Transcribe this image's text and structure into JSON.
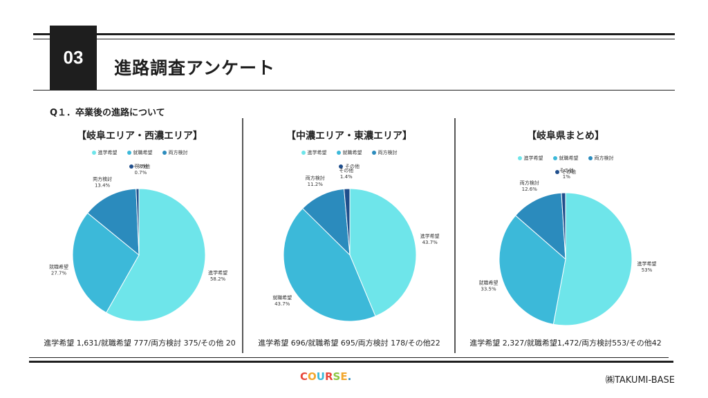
{
  "header": {
    "number": "03",
    "title": "進路調査アンケート"
  },
  "question": "Q１．卒業後の進路について",
  "colors": {
    "shingaku": "#6ee5ea",
    "shushoku": "#3cb9d9",
    "ryoho": "#2b8bbd",
    "sonota": "#1f4e8c"
  },
  "legend_labels": [
    "進学希望",
    "就職希望",
    "両方検討",
    "その他"
  ],
  "footer": {
    "logo": "COURSE.",
    "company": "㈱TAKUMI-BASE"
  },
  "chart_data": [
    {
      "type": "pie",
      "title": "【岐阜エリア・西濃エリア】",
      "categories": [
        "進学希望",
        "就職希望",
        "両方検討",
        "その他"
      ],
      "values": [
        58.2,
        27.7,
        13.4,
        0.7
      ],
      "value_labels": [
        "58.2%",
        "27.7%",
        "13.4%",
        "0.7%"
      ],
      "summary": "進学希望 1,631/就職希望 777/両方検討 375/その他 20"
    },
    {
      "type": "pie",
      "title": "【中濃エリア・東濃エリア】",
      "categories": [
        "進学希望",
        "就職希望",
        "両方検討",
        "その他"
      ],
      "values": [
        43.7,
        43.7,
        11.2,
        1.4
      ],
      "value_labels": [
        "43.7%",
        "43.7%",
        "11.2%",
        "1.4%"
      ],
      "summary": "進学希望 696/就職希望 695/両方検討 178/その他22"
    },
    {
      "type": "pie",
      "title": "【岐阜県まとめ】",
      "categories": [
        "進学希望",
        "就職希望",
        "両方検討",
        "その他"
      ],
      "values": [
        53,
        33.5,
        12.6,
        1
      ],
      "value_labels": [
        "53%",
        "33.5%",
        "12.6%",
        "1%"
      ],
      "summary": "進学希望 2,327/就職希望1,472/両方検討553/その他42"
    }
  ]
}
